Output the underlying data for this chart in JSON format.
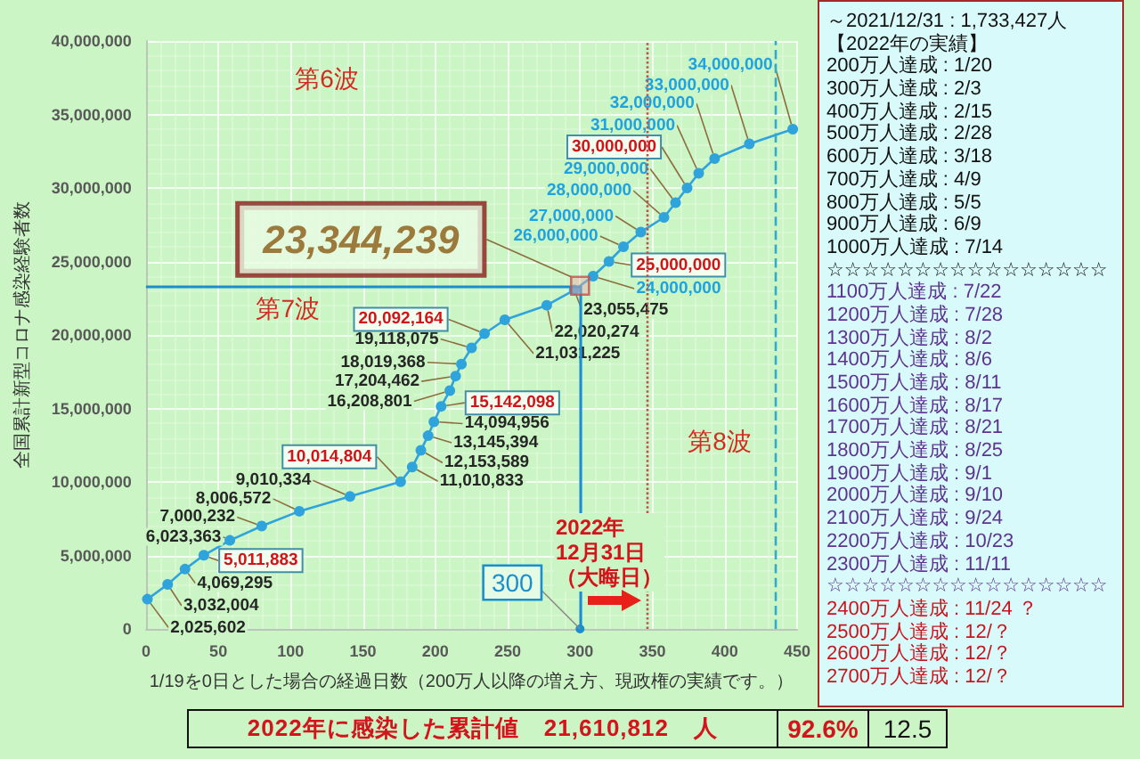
{
  "chart_data": [
    {
      "type": "line",
      "xlabel": "1/19を0日とした場合の経過日数（200万人以降の増え方、現政権の実績です。）",
      "ylabel": "全国累計新型コロナ感染経験者数",
      "xlim": [
        0,
        450
      ],
      "xticks": [
        0,
        50,
        100,
        150,
        200,
        250,
        300,
        350,
        400,
        450
      ],
      "ylim": [
        0,
        40000000
      ],
      "yticks": [
        0,
        {
          "value": 5000000,
          "label": "5,000,000"
        },
        {
          "value": 10000000,
          "label": "10,000,000"
        },
        {
          "value": 15000000,
          "label": "15,000,000"
        },
        {
          "value": 20000000,
          "label": "20,000,000"
        },
        {
          "value": 25000000,
          "label": "25,000,000"
        },
        {
          "value": 30000000,
          "label": "30,000,000"
        },
        {
          "value": 35000000,
          "label": "35,000,000"
        },
        {
          "value": 40000000,
          "label": "40,000,000"
        }
      ],
      "grid": true,
      "marker": "circle",
      "annotations": [
        "第6波",
        "第7波",
        "第8波"
      ],
      "series": [
        {
          "color": "#2ea3dc",
          "x": [
            1,
            15,
            27,
            40,
            58,
            80,
            106,
            141,
            176,
            184,
            190,
            195,
            199,
            204,
            210,
            214,
            218,
            225,
            234,
            248,
            277,
            296,
            309,
            320,
            330,
            342,
            358,
            366,
            374,
            382,
            393,
            417,
            447
          ],
          "values": [
            2025602,
            3032004,
            4069295,
            5011883,
            6023363,
            7000232,
            8006572,
            9010334,
            10014804,
            11010833,
            12153589,
            13145394,
            14094956,
            15142098,
            16208801,
            17204462,
            18019368,
            19118075,
            20092164,
            21031225,
            22020274,
            23055475,
            24000000,
            25000000,
            26000000,
            27000000,
            28000000,
            29000000,
            30000000,
            31000000,
            32000000,
            33000000,
            34000000
          ],
          "value_labels": [
            "2,025,602",
            "3,032,004",
            "4,069,295",
            "5,011,883",
            "6,023,363",
            "7,000,232",
            "8,006,572",
            "9,010,334",
            "10,014,804",
            "11,010,833",
            "12,153,589",
            "13,145,394",
            "14,094,956",
            "15,142,098",
            "16,208,801",
            "17,204,462",
            "18,019,368",
            "19,118,075",
            "20,092,164",
            "21,031,225",
            "22,020,274",
            "23,055,475",
            "24,000,000",
            "25,000,000",
            "26,000,000",
            "27,000,000",
            "28,000,000",
            "29,000,000",
            "30,000,000",
            "31,000,000",
            "32,000,000",
            "33,000,000",
            "34,000,000"
          ]
        },
        {
          "type": "scatter",
          "marker": "square",
          "color": "#c0504d",
          "x": [
            300
          ],
          "values": [
            23344239
          ],
          "value_labels": [
            "23,344,239"
          ]
        }
      ],
      "ref_lines": [
        {
          "axis": "y",
          "value": 23344239,
          "color": "#1a8fd0",
          "line_style": "solid"
        },
        {
          "axis": "x",
          "value": 300,
          "label": "300",
          "color": "#1a8fd0",
          "line_style": "solid"
        },
        {
          "axis": "x",
          "value": 346,
          "label": "2022年12月31日（大晦日）",
          "color": "#c0504d",
          "line_style": "dotted"
        },
        {
          "axis": "x",
          "value": 435,
          "color": "#33aacc",
          "line_style": "dashed"
        }
      ]
    },
    {
      "type": "other",
      "annotations": [
        "～2021/12/31 : 1,733,427人",
        "【2022年の実績】",
        "200万人達成 : 1/20",
        "300万人達成 : 2/3",
        "400万人達成 : 2/15",
        "500万人達成 : 2/28",
        "600万人達成 : 3/18",
        "700万人達成 : 4/9",
        "800万人達成 : 5/5",
        "900万人達成 : 6/9",
        "1000万人達成 : 7/14",
        "☆☆☆☆☆☆☆☆☆☆☆☆☆☆☆☆",
        "1100万人達成 : 7/22",
        "1200万人達成 : 7/28",
        "1300万人達成 : 8/2",
        "1400万人達成 : 8/6",
        "1500万人達成 : 8/11",
        "1600万人達成 : 8/17",
        "1700万人達成 : 8/21",
        "1800万人達成 : 8/25",
        "1900万人達成 : 9/1",
        "2000万人達成 : 9/10",
        "2100万人達成 : 9/24",
        "2200万人達成 : 10/23",
        "2300万人達成 : 11/11",
        "☆☆☆☆☆☆☆☆☆☆☆☆☆☆☆☆",
        "2400万人達成 : 11/24 ？",
        "2500万人達成 : 12/？",
        "2600万人達成 : 12/？",
        "2700万人達成 : 12/？"
      ]
    },
    {
      "type": "other",
      "annotations": [
        "2022年に感染した累計値 21,610,812 人",
        "92.6%",
        "12.5"
      ]
    }
  ]
}
